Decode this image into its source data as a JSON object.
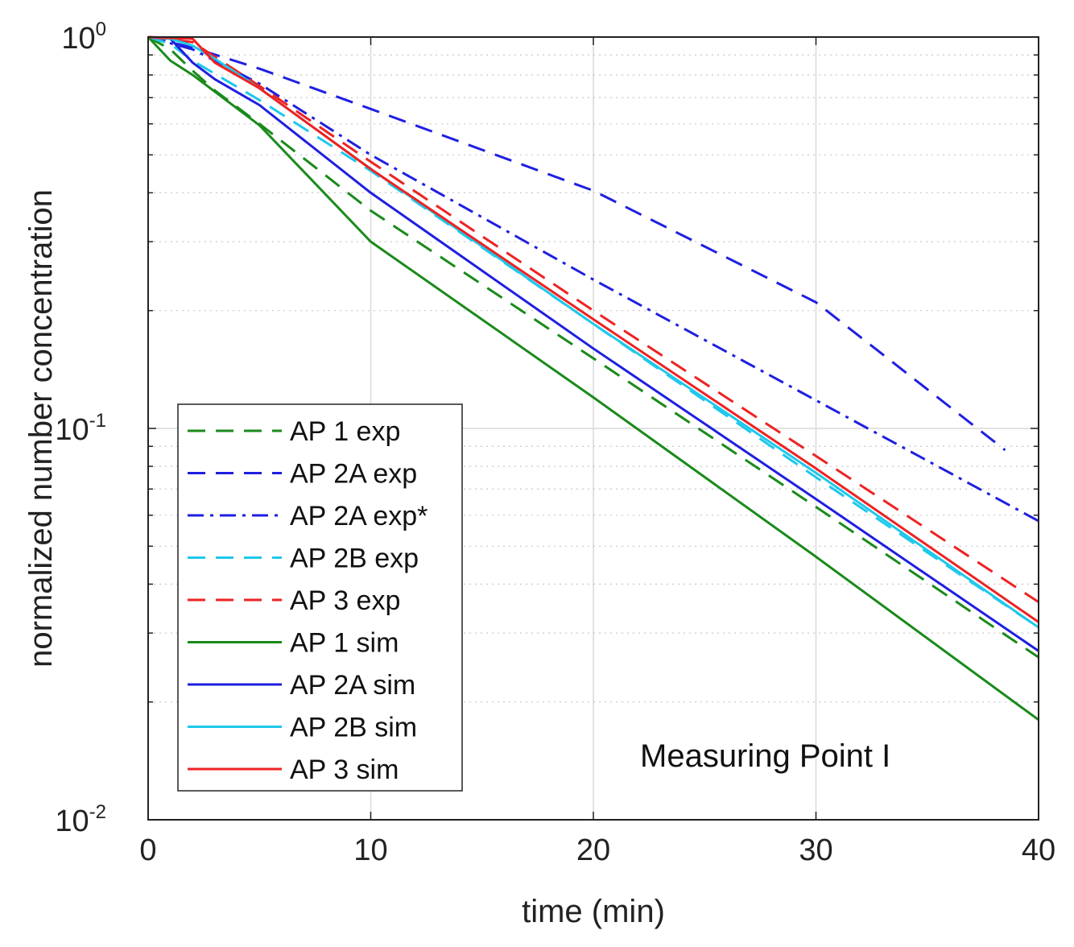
{
  "chart_data": {
    "type": "line",
    "title": "",
    "xlabel": "time (min)",
    "ylabel": "normalized number concentration",
    "xlim": [
      0,
      40
    ],
    "ylim": [
      0.01,
      1
    ],
    "yscale": "log",
    "grid": true,
    "x_ticks": [
      {
        "value": 0,
        "label": "0"
      },
      {
        "value": 10,
        "label": "10"
      },
      {
        "value": 20,
        "label": "20"
      },
      {
        "value": 30,
        "label": "30"
      },
      {
        "value": 40,
        "label": "40"
      }
    ],
    "y_ticks": [
      {
        "value": 1,
        "base": "10",
        "exp": "0"
      },
      {
        "value": 0.1,
        "base": "10",
        "exp": "-1"
      },
      {
        "value": 0.01,
        "base": "10",
        "exp": "-2"
      }
    ],
    "legend_position": "lower-left",
    "annotation": "Measuring Point I",
    "series": [
      {
        "name": "AP 1 exp",
        "color": "#1a8a1a",
        "style": "dashed",
        "points": [
          [
            0,
            1.0
          ],
          [
            1,
            0.93
          ],
          [
            2,
            0.82
          ],
          [
            3,
            0.73
          ],
          [
            5,
            0.6
          ],
          [
            10,
            0.36
          ],
          [
            20,
            0.151
          ],
          [
            30,
            0.063
          ],
          [
            40,
            0.026
          ]
        ]
      },
      {
        "name": "AP 2A exp",
        "color": "#1f1fe0",
        "style": "dashed",
        "points": [
          [
            0,
            1.0
          ],
          [
            2,
            0.94
          ],
          [
            5,
            0.83
          ],
          [
            10,
            0.655
          ],
          [
            20,
            0.405
          ],
          [
            30,
            0.21
          ],
          [
            38.5,
            0.088
          ]
        ]
      },
      {
        "name": "AP 2A exp*",
        "color": "#1f1fe0",
        "style": "dashdot",
        "points": [
          [
            0,
            1.0
          ],
          [
            2,
            0.93
          ],
          [
            5,
            0.76
          ],
          [
            10,
            0.5
          ],
          [
            20,
            0.24
          ],
          [
            30,
            0.118
          ],
          [
            40,
            0.058
          ]
        ]
      },
      {
        "name": "AP 2B exp",
        "color": "#1ec8ec",
        "style": "dashed",
        "points": [
          [
            0,
            1.0
          ],
          [
            1,
            0.96
          ],
          [
            2,
            0.87
          ],
          [
            5,
            0.69
          ],
          [
            10,
            0.455
          ],
          [
            20,
            0.185
          ],
          [
            30,
            0.075
          ],
          [
            40,
            0.031
          ]
        ]
      },
      {
        "name": "AP 3 exp",
        "color": "#ee2222",
        "style": "dashed",
        "points": [
          [
            0,
            1.0
          ],
          [
            2,
            0.97
          ],
          [
            3,
            0.89
          ],
          [
            5,
            0.75
          ],
          [
            10,
            0.48
          ],
          [
            20,
            0.2
          ],
          [
            30,
            0.085
          ],
          [
            40,
            0.036
          ]
        ]
      },
      {
        "name": "AP 1 sim",
        "color": "#1a8a1a",
        "style": "solid",
        "points": [
          [
            0,
            1.0
          ],
          [
            1,
            0.87
          ],
          [
            2,
            0.8
          ],
          [
            5,
            0.595
          ],
          [
            10,
            0.3
          ],
          [
            20,
            0.12
          ],
          [
            30,
            0.047
          ],
          [
            40,
            0.018
          ]
        ]
      },
      {
        "name": "AP 2A sim",
        "color": "#1f1fe0",
        "style": "solid",
        "points": [
          [
            0,
            1.0
          ],
          [
            1,
            0.99
          ],
          [
            2,
            0.86
          ],
          [
            3,
            0.78
          ],
          [
            5,
            0.67
          ],
          [
            10,
            0.4
          ],
          [
            20,
            0.16
          ],
          [
            30,
            0.066
          ],
          [
            40,
            0.027
          ]
        ]
      },
      {
        "name": "AP 2B sim",
        "color": "#1ec8ec",
        "style": "solid",
        "points": [
          [
            0,
            1.0
          ],
          [
            1,
            0.99
          ],
          [
            2,
            0.95
          ],
          [
            3,
            0.88
          ],
          [
            5,
            0.74
          ],
          [
            10,
            0.46
          ],
          [
            20,
            0.185
          ],
          [
            30,
            0.077
          ],
          [
            40,
            0.031
          ]
        ]
      },
      {
        "name": "AP 3 sim",
        "color": "#ee2222",
        "style": "solid",
        "points": [
          [
            0,
            1.0
          ],
          [
            2,
            0.99
          ],
          [
            3,
            0.86
          ],
          [
            5,
            0.74
          ],
          [
            10,
            0.46
          ],
          [
            20,
            0.19
          ],
          [
            30,
            0.079
          ],
          [
            40,
            0.032
          ]
        ]
      }
    ]
  }
}
